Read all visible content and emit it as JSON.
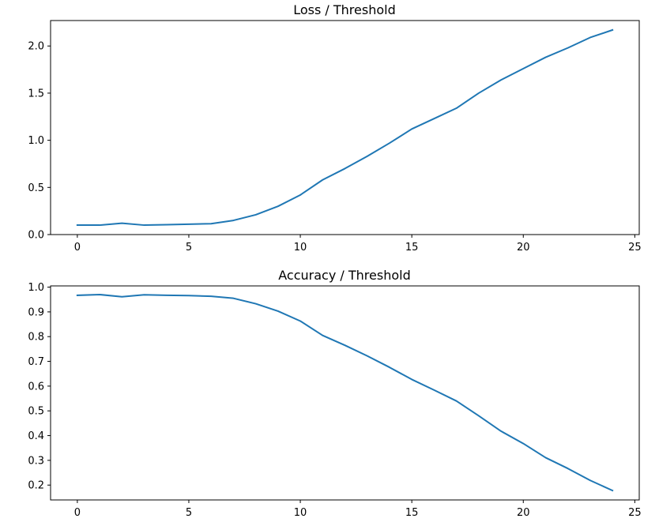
{
  "chart_data": [
    {
      "type": "line",
      "title": "Loss / Threshold",
      "xlabel": "",
      "ylabel": "",
      "xlim": [
        -1.2,
        25.2
      ],
      "ylim": [
        0.0,
        2.27
      ],
      "xticks": [
        0,
        5,
        10,
        15,
        20,
        25
      ],
      "yticks": [
        0.0,
        0.5,
        1.0,
        1.5,
        2.0
      ],
      "ytick_labels": [
        "0.0",
        "0.5",
        "1.0",
        "1.5",
        "2.0"
      ],
      "grid": false,
      "series": [
        {
          "color": "#1f77b4",
          "x": [
            0,
            1,
            2,
            3,
            4,
            5,
            6,
            7,
            8,
            9,
            10,
            11,
            12,
            13,
            14,
            15,
            16,
            17,
            18,
            19,
            20,
            21,
            22,
            23,
            24
          ],
          "values": [
            0.1,
            0.1,
            0.12,
            0.1,
            0.105,
            0.11,
            0.115,
            0.15,
            0.21,
            0.3,
            0.42,
            0.58,
            0.7,
            0.83,
            0.97,
            1.12,
            1.23,
            1.34,
            1.5,
            1.64,
            1.76,
            1.88,
            1.98,
            2.09,
            2.17
          ]
        }
      ]
    },
    {
      "type": "line",
      "title": "Accuracy / Threshold",
      "xlabel": "",
      "ylabel": "",
      "xlim": [
        -1.2,
        25.2
      ],
      "ylim": [
        0.14,
        1.005
      ],
      "xticks": [
        0,
        5,
        10,
        15,
        20,
        25
      ],
      "yticks": [
        0.2,
        0.3,
        0.4,
        0.5,
        0.6,
        0.7,
        0.8,
        0.9,
        1.0
      ],
      "ytick_labels": [
        "0.2",
        "0.3",
        "0.4",
        "0.5",
        "0.6",
        "0.7",
        "0.8",
        "0.9",
        "1.0"
      ],
      "grid": false,
      "series": [
        {
          "color": "#1f77b4",
          "x": [
            0,
            1,
            2,
            3,
            4,
            5,
            6,
            7,
            8,
            9,
            10,
            11,
            12,
            13,
            14,
            15,
            16,
            17,
            18,
            19,
            20,
            21,
            22,
            23,
            24
          ],
          "values": [
            0.967,
            0.97,
            0.961,
            0.969,
            0.967,
            0.966,
            0.963,
            0.955,
            0.933,
            0.903,
            0.863,
            0.805,
            0.765,
            0.722,
            0.676,
            0.627,
            0.584,
            0.54,
            0.48,
            0.418,
            0.368,
            0.311,
            0.267,
            0.219,
            0.178
          ]
        }
      ]
    }
  ]
}
